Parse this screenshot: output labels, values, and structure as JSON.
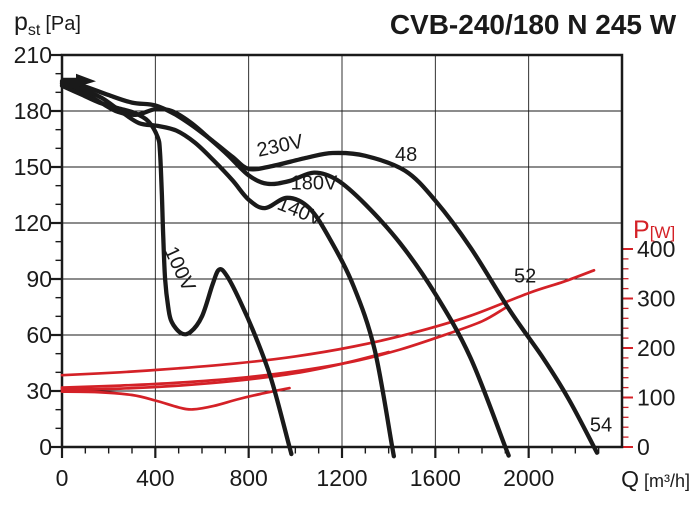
{
  "title": "CVB-240/180 N 245 W",
  "colors": {
    "black": "#1a1a1a",
    "red": "#d42127",
    "background": "#ffffff"
  },
  "axes": {
    "x": {
      "label_main": "Q",
      "label_unit": "[m³/h]",
      "min": 0,
      "max": 2400,
      "major_step": 400,
      "minor_step": 100,
      "labeled_ticks": [
        0,
        400,
        800,
        1200,
        1600,
        2000
      ]
    },
    "y_left": {
      "label_main": "p",
      "label_sub": "st",
      "label_unit": "[Pa]",
      "min": 0,
      "max": 210,
      "major_step": 30,
      "minor_step": 10,
      "labeled_ticks": [
        0,
        30,
        60,
        90,
        120,
        150,
        180,
        210
      ]
    },
    "y_right": {
      "label_main": "P",
      "label_unit": "[W]",
      "min": 0,
      "max": 400,
      "major_step": 100,
      "minor_step": 20,
      "labeled_ticks": [
        0,
        100,
        200,
        300,
        400
      ],
      "color": "#d42127"
    }
  },
  "chart_data": {
    "type": "line",
    "x_unit": "m³/h",
    "left_unit": "Pa",
    "right_unit": "W",
    "grid": true,
    "series": [
      {
        "name": "230V",
        "kind": "pressure",
        "axis": "left",
        "color": "black",
        "label": {
          "text": "230V",
          "q": 940,
          "v": 158,
          "rotate": -12
        },
        "points": [
          [
            0,
            196
          ],
          [
            100,
            193
          ],
          [
            200,
            188.5
          ],
          [
            300,
            184.5
          ],
          [
            400,
            183
          ],
          [
            480,
            178.5
          ],
          [
            560,
            172
          ],
          [
            650,
            163.5
          ],
          [
            730,
            155.5
          ],
          [
            800,
            149
          ],
          [
            900,
            150.5
          ],
          [
            1050,
            155
          ],
          [
            1160,
            157.5
          ],
          [
            1300,
            156
          ],
          [
            1470,
            148
          ],
          [
            1600,
            132
          ],
          [
            1750,
            107
          ],
          [
            1920,
            73
          ],
          [
            2060,
            48
          ],
          [
            2170,
            26
          ],
          [
            2280,
            0
          ]
        ]
      },
      {
        "name": "180V",
        "kind": "pressure",
        "axis": "left",
        "color": "black",
        "label": {
          "text": "180V",
          "q": 1080,
          "v": 138,
          "rotate": 0
        },
        "points": [
          [
            0,
            195
          ],
          [
            80,
            191
          ],
          [
            160,
            185
          ],
          [
            240,
            179.5
          ],
          [
            320,
            178
          ],
          [
            400,
            181
          ],
          [
            470,
            180
          ],
          [
            550,
            174
          ],
          [
            630,
            165.5
          ],
          [
            710,
            156.5
          ],
          [
            800,
            145.5
          ],
          [
            880,
            141
          ],
          [
            975,
            142.5
          ],
          [
            1080,
            147
          ],
          [
            1180,
            143
          ],
          [
            1300,
            130
          ],
          [
            1450,
            109
          ],
          [
            1600,
            82
          ],
          [
            1750,
            48
          ],
          [
            1900,
            0
          ]
        ]
      },
      {
        "name": "140V",
        "kind": "pressure",
        "axis": "left",
        "color": "black",
        "label": {
          "text": "140V",
          "q": 1010,
          "v": 123,
          "rotate": 22
        },
        "points": [
          [
            0,
            194.5
          ],
          [
            80,
            192
          ],
          [
            170,
            187
          ],
          [
            250,
            180
          ],
          [
            330,
            173.5
          ],
          [
            410,
            172
          ],
          [
            490,
            169.5
          ],
          [
            570,
            163
          ],
          [
            650,
            153.5
          ],
          [
            730,
            143
          ],
          [
            800,
            132.5
          ],
          [
            870,
            128
          ],
          [
            965,
            133.5
          ],
          [
            1060,
            128
          ],
          [
            1150,
            111
          ],
          [
            1250,
            86
          ],
          [
            1340,
            52
          ],
          [
            1415,
            0
          ]
        ]
      },
      {
        "name": "100V",
        "kind": "pressure",
        "axis": "left",
        "color": "black",
        "label": {
          "text": "100V",
          "q": 480,
          "v": 94,
          "rotate": 65
        },
        "points": [
          [
            0,
            193.5
          ],
          [
            80,
            189
          ],
          [
            160,
            184.5
          ],
          [
            240,
            181.5
          ],
          [
            310,
            179
          ],
          [
            370,
            174.5
          ],
          [
            410,
            166
          ],
          [
            420,
            158
          ],
          [
            428,
            135
          ],
          [
            434,
            112
          ],
          [
            442,
            90
          ],
          [
            455,
            75
          ],
          [
            470,
            67
          ],
          [
            510,
            61
          ],
          [
            550,
            61.5
          ],
          [
            600,
            70
          ],
          [
            645,
            87
          ],
          [
            673,
            95
          ],
          [
            705,
            92
          ],
          [
            760,
            79
          ],
          [
            830,
            59
          ],
          [
            900,
            35
          ],
          [
            975,
            0
          ]
        ]
      },
      {
        "name": "230V-power",
        "kind": "power",
        "axis": "right",
        "color": "red",
        "label": null,
        "points": [
          [
            0,
            145
          ],
          [
            250,
            151
          ],
          [
            500,
            159
          ],
          [
            750,
            169
          ],
          [
            1000,
            183
          ],
          [
            1250,
            203
          ],
          [
            1500,
            230
          ],
          [
            1750,
            265
          ],
          [
            2000,
            311
          ],
          [
            2150,
            334
          ],
          [
            2280,
            357
          ]
        ]
      },
      {
        "name": "180V-power",
        "kind": "power",
        "axis": "right",
        "color": "red",
        "label": null,
        "points": [
          [
            0,
            120
          ],
          [
            250,
            124
          ],
          [
            500,
            130
          ],
          [
            750,
            139
          ],
          [
            1000,
            153
          ],
          [
            1250,
            173
          ],
          [
            1450,
            197
          ],
          [
            1650,
            228
          ],
          [
            1800,
            254
          ],
          [
            1900,
            281
          ]
        ]
      },
      {
        "name": "140V-power",
        "kind": "power",
        "axis": "right",
        "color": "red",
        "label": null,
        "points": [
          [
            0,
            116
          ],
          [
            250,
            118
          ],
          [
            500,
            124
          ],
          [
            750,
            134
          ],
          [
            1000,
            149
          ],
          [
            1200,
            168
          ],
          [
            1400,
            192
          ]
        ]
      },
      {
        "name": "100V-power",
        "kind": "power",
        "axis": "right",
        "color": "red",
        "label": null,
        "points": [
          [
            0,
            112
          ],
          [
            150,
            111
          ],
          [
            300,
            105
          ],
          [
            400,
            94
          ],
          [
            500,
            80
          ],
          [
            560,
            76
          ],
          [
            650,
            83
          ],
          [
            750,
            96
          ],
          [
            850,
            107
          ],
          [
            975,
            119
          ]
        ]
      }
    ],
    "annotations": [
      {
        "text": "48",
        "q": 1475,
        "v": 157
      },
      {
        "text": "52",
        "q": 1985,
        "v": 92
      },
      {
        "text": "54",
        "q": 2310,
        "v": 12
      }
    ],
    "start_marker": {
      "q": 0,
      "v": 196.5,
      "shape": "arrow-right"
    }
  }
}
